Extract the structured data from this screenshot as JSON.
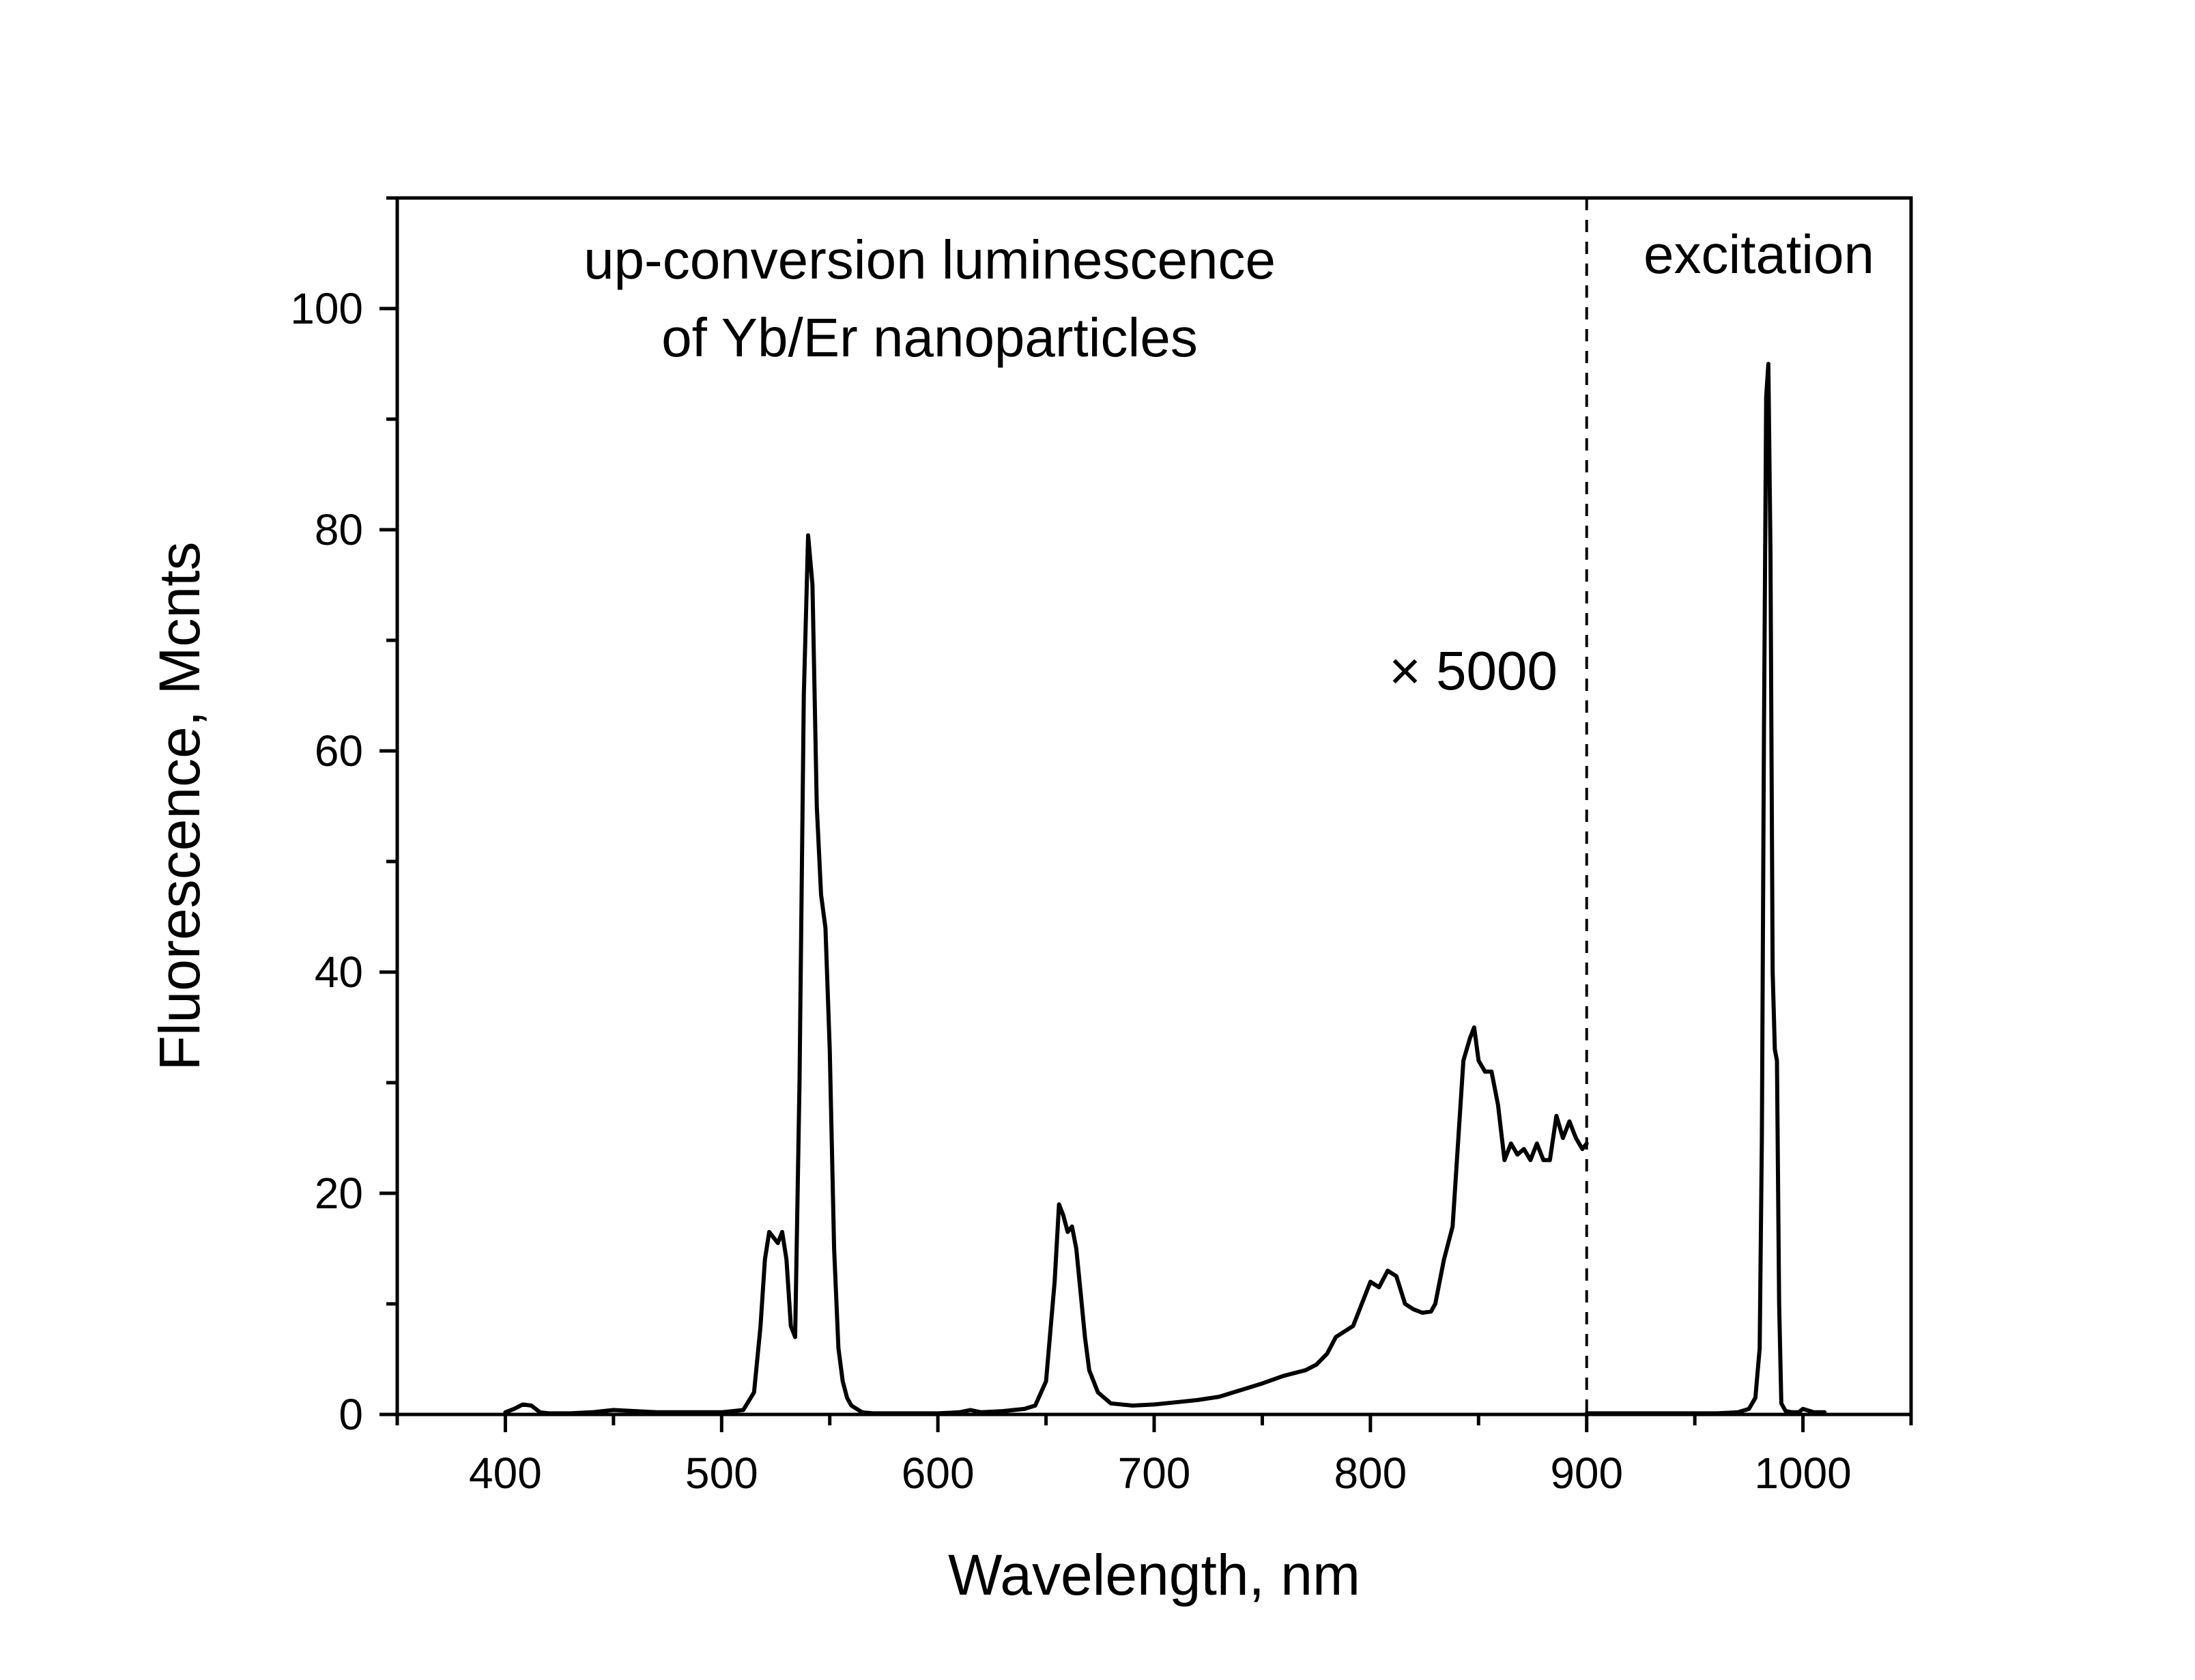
{
  "chart_data": {
    "type": "line",
    "xlabel": "Wavelength, nm",
    "ylabel": "Fluorescence, Mcnts",
    "xlim": [
      350,
      1050
    ],
    "ylim": [
      0,
      110
    ],
    "x_ticks": [
      400,
      500,
      600,
      700,
      800,
      900,
      1000
    ],
    "x_minor_ticks": [
      350,
      450,
      550,
      650,
      750,
      850,
      950,
      1050
    ],
    "y_ticks": [
      0,
      20,
      40,
      60,
      80,
      100
    ],
    "y_minor_ticks": [
      10,
      30,
      50,
      70,
      90,
      110
    ],
    "grid": false,
    "legend": "none",
    "annotations": {
      "uc_line1": "up-conversion luminescence",
      "uc_line2": "of Yb/Er nanoparticles",
      "multiplier": "× 5000",
      "excitation": "excitation"
    },
    "divider_x": 900,
    "series": [
      {
        "x": [
          400,
          404,
          408,
          412,
          416,
          420,
          430,
          440,
          450,
          460,
          470,
          480,
          490,
          500,
          510,
          515,
          518,
          520,
          522,
          524,
          526,
          528,
          530,
          532,
          534,
          536,
          538,
          540,
          542,
          544,
          546,
          548,
          550,
          552,
          554,
          556,
          558,
          560,
          565,
          570,
          580,
          590,
          600,
          610,
          615,
          620,
          630,
          640,
          645,
          650,
          654,
          656,
          658,
          660,
          662,
          664,
          666,
          668,
          670,
          674,
          680,
          690,
          700,
          710,
          720,
          730,
          740,
          750,
          760,
          770,
          775,
          780,
          784,
          788,
          792,
          796,
          800,
          804,
          808,
          812,
          816,
          820,
          824,
          828,
          830,
          834,
          838,
          840,
          843,
          846,
          848,
          850,
          853,
          856,
          859,
          862,
          865,
          868,
          871,
          874,
          877,
          880,
          883,
          886,
          889,
          892,
          895,
          898,
          900
        ],
        "y": [
          0.2,
          0.5,
          0.9,
          0.8,
          0.2,
          0.1,
          0.1,
          0.2,
          0.4,
          0.3,
          0.2,
          0.2,
          0.2,
          0.2,
          0.4,
          2,
          8,
          14,
          16.5,
          16,
          15.5,
          16.5,
          14,
          8,
          7,
          30,
          65,
          79.5,
          75,
          55,
          47,
          44,
          33,
          15,
          6,
          3,
          1.5,
          0.8,
          0.2,
          0.1,
          0.1,
          0.1,
          0.1,
          0.2,
          0.4,
          0.2,
          0.3,
          0.5,
          0.8,
          3,
          12,
          19,
          18,
          16.5,
          17,
          15,
          11,
          7,
          4,
          2,
          1,
          0.8,
          0.9,
          1.1,
          1.3,
          1.6,
          2.2,
          2.8,
          3.5,
          4,
          4.5,
          5.5,
          7,
          7.5,
          8,
          10,
          12,
          11.5,
          13,
          12.5,
          10,
          9.5,
          9.2,
          9.3,
          10,
          14,
          17,
          23,
          32,
          34,
          35,
          32,
          31,
          31,
          28,
          23,
          24.5,
          23.5,
          24,
          23,
          24.5,
          23,
          23,
          27,
          25,
          26.5,
          25,
          24,
          24.5
        ]
      },
      {
        "x": [
          900,
          920,
          940,
          960,
          970,
          975,
          978,
          980,
          981,
          982,
          983,
          984,
          985,
          986,
          987,
          988,
          989,
          990,
          992,
          995,
          998,
          1000,
          1005,
          1010
        ],
        "y": [
          0.1,
          0.1,
          0.1,
          0.1,
          0.2,
          0.5,
          1.5,
          6,
          25,
          62,
          92,
          95,
          78,
          40,
          33,
          32,
          10,
          1,
          0.3,
          0.2,
          0.2,
          0.5,
          0.2,
          0.2
        ]
      }
    ]
  }
}
